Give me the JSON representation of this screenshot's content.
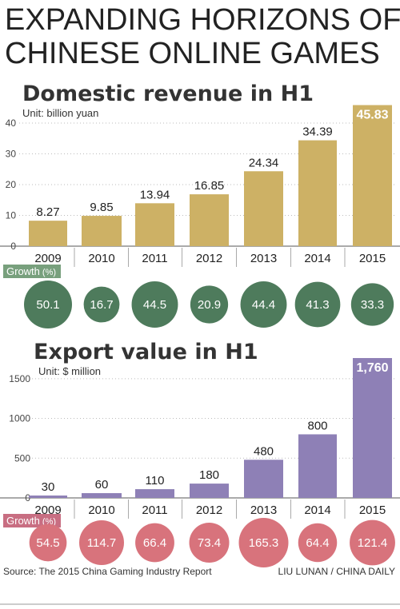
{
  "title_lines": [
    "EXPANDING HORIZONS OF",
    "CHINESE ONLINE GAMES"
  ],
  "source": "Source: The 2015 China Gaming Industry Report",
  "credit": "LIU LUNAN / CHINA DAILY",
  "colors": {
    "revenue_bar": "#cdb165",
    "revenue_bar_dark": "#b9994a",
    "export_bar": "#8e80b6",
    "export_bar_dark": "#7464a3",
    "revenue_growth": "#4e7b5c",
    "export_growth": "#d8737c",
    "growth_label_bg_revenue": "#78a07d",
    "growth_label_bg_export": "#c86e82"
  },
  "chart_data": [
    {
      "type": "bar",
      "title": "Domestic revenue in H1",
      "unit": "Unit: billion yuan",
      "categories": [
        "2009",
        "2010",
        "2011",
        "2012",
        "2013",
        "2014",
        "2015"
      ],
      "values": [
        8.27,
        9.85,
        13.94,
        16.85,
        24.34,
        34.39,
        45.83
      ],
      "value_labels": [
        "8.27",
        "9.85",
        "13.94",
        "16.85",
        "24.34",
        "34.39",
        "45.83"
      ],
      "ylim": [
        0,
        47
      ],
      "yticks": [
        "0",
        "10",
        "20",
        "30",
        "40"
      ],
      "ytick_values": [
        0,
        10,
        20,
        30,
        40
      ],
      "growth_label": "Growth",
      "growth_unit": "(%)",
      "growth_values": [
        50.1,
        16.7,
        44.5,
        20.9,
        44.4,
        41.3,
        33.3
      ],
      "growth_labels": [
        "50.1",
        "16.7",
        "44.5",
        "20.9",
        "44.4",
        "41.3",
        "33.3"
      ]
    },
    {
      "type": "bar",
      "title": "Export value in H1",
      "unit": "Unit: $ million",
      "categories": [
        "2009",
        "2010",
        "2011",
        "2012",
        "2013",
        "2014",
        "2015"
      ],
      "values": [
        30,
        60,
        110,
        180,
        480,
        800,
        1760
      ],
      "value_labels": [
        "30",
        "60",
        "110",
        "180",
        "480",
        "800",
        "1,760"
      ],
      "ylim": [
        0,
        1780
      ],
      "yticks": [
        "0",
        "500",
        "1000",
        "1500"
      ],
      "ytick_values": [
        0,
        500,
        1000,
        1500
      ],
      "growth_label": "Growth",
      "growth_unit": "(%)",
      "growth_values": [
        54.5,
        114.7,
        66.4,
        73.4,
        165.3,
        64.4,
        121.4
      ],
      "growth_labels": [
        "54.5",
        "114.7",
        "66.4",
        "73.4",
        "165.3",
        "64.4",
        "121.4"
      ]
    }
  ]
}
